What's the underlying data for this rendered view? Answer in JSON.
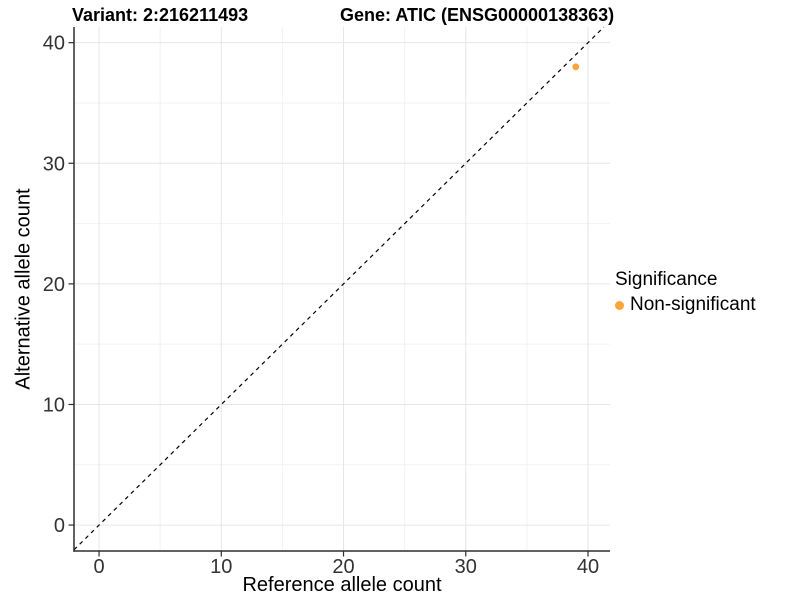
{
  "chart_data": {
    "type": "scatter",
    "title_left": "Variant: 2:216211493",
    "title_right": "Gene: ATIC (ENSG00000138363)",
    "xlabel": "Reference allele count",
    "ylabel": "Alternative allele count",
    "xlim": [
      -2.05,
      41.8
    ],
    "ylim": [
      -2.15,
      41.3
    ],
    "x_ticks": [
      0,
      10,
      20,
      30,
      40
    ],
    "y_ticks": [
      0,
      10,
      20,
      30,
      40
    ],
    "x_minor_ticks": [
      5,
      15,
      25,
      35
    ],
    "y_minor_ticks": [
      5,
      15,
      25,
      35
    ],
    "grid": "major and minor gridlines on white panel",
    "identity_line": {
      "style": "dashed",
      "slope": 1,
      "intercept": 0,
      "color": "#000000"
    },
    "series": [
      {
        "name": "Non-significant",
        "color": "#FAA43A",
        "points": [
          {
            "x": 39,
            "y": 38
          }
        ]
      }
    ],
    "legend": {
      "position": "right",
      "title": "Significance",
      "items": [
        {
          "label": "Non-significant",
          "color": "#FAA43A"
        }
      ]
    },
    "colors": {
      "axis_line": "#2e2e2e",
      "tick_label": "#333333",
      "grid_major": "#e6e6e6",
      "grid_minor": "#f2f2f2",
      "background": "#ffffff"
    }
  }
}
